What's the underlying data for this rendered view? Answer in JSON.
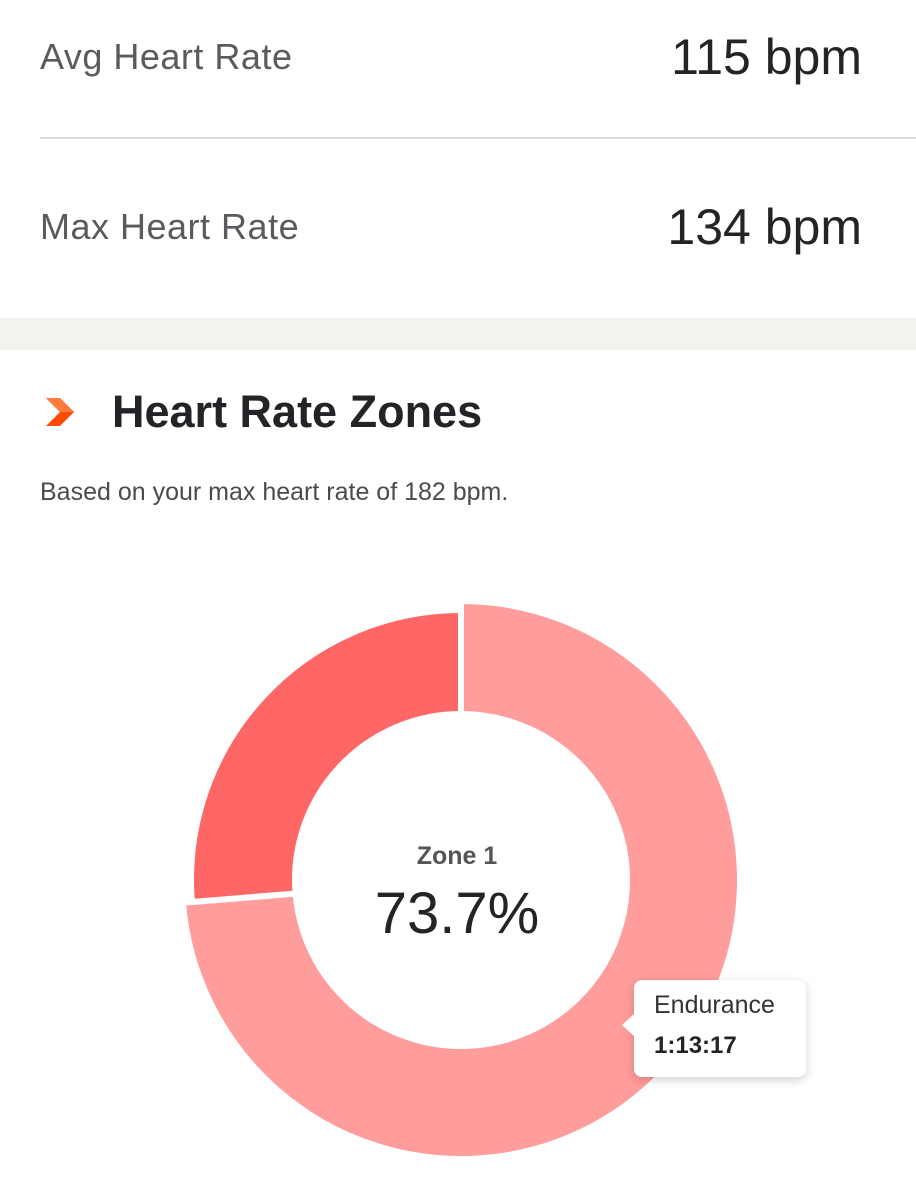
{
  "stats": {
    "avg": {
      "label": "Avg Heart Rate",
      "value": "115 bpm"
    },
    "max": {
      "label": "Max Heart Rate",
      "value": "134 bpm"
    }
  },
  "section": {
    "title": "Heart Rate Zones",
    "subtitle": "Based on your max heart rate of 182 bpm.",
    "icon": "chevron-right-icon",
    "accent_color": "#fc4c02"
  },
  "center": {
    "label": "Zone 1",
    "value": "73.7%"
  },
  "tooltip": {
    "name": "Endurance",
    "time": "1:13:17"
  },
  "chart_data": {
    "type": "pie",
    "style": "donut",
    "series": [
      {
        "values": [
          73.7,
          26.3
        ],
        "colors": [
          "#ff9c9c",
          "#ff6666"
        ]
      }
    ],
    "selected_index": 0
  }
}
